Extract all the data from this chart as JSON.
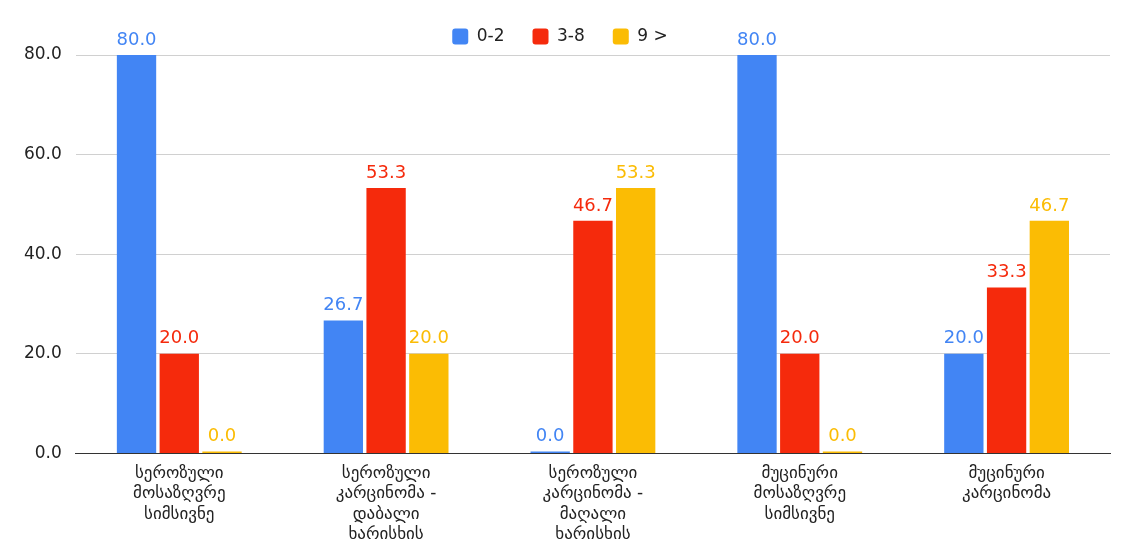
{
  "chart_data": {
    "type": "bar",
    "categories": [
      "სეროზული მოსაზღვრე სიმსივნე",
      "სეროზული კარცინომა - დაბალი ხარისხის",
      "სეროზული კარცინომა - მაღალი ხარისხის",
      "მუცინური მოსაზღვრე სიმსივნე",
      "მუცინური კარცინომა"
    ],
    "series": [
      {
        "name": "0-2",
        "color": "#4285f4",
        "values": [
          80,
          26.7,
          0,
          80,
          20
        ],
        "value_labels": [
          "80.0",
          "26.7",
          "0.0",
          "80.0",
          "20.0"
        ]
      },
      {
        "name": "3-8",
        "color": "#f52a0c",
        "values": [
          20,
          53.3,
          46.7,
          20,
          33.3
        ],
        "value_labels": [
          "20.0",
          "53.3",
          "46.7",
          "20.0",
          "33.3"
        ]
      },
      {
        "name": "9 >",
        "color": "#fbbc04",
        "values": [
          0,
          20,
          53.3,
          0,
          46.7
        ],
        "value_labels": [
          "0.0",
          "20.0",
          "53.3",
          "0.0",
          "46.7"
        ]
      }
    ],
    "ylim": [
      0,
      80
    ],
    "yticks": [
      {
        "value": 0,
        "label": "0.0"
      },
      {
        "value": 20,
        "label": "20.0"
      },
      {
        "value": 40,
        "label": "40.0"
      },
      {
        "value": 60,
        "label": "60.0"
      },
      {
        "value": 80,
        "label": "80.0"
      }
    ],
    "grid": "y",
    "legend": "top"
  }
}
